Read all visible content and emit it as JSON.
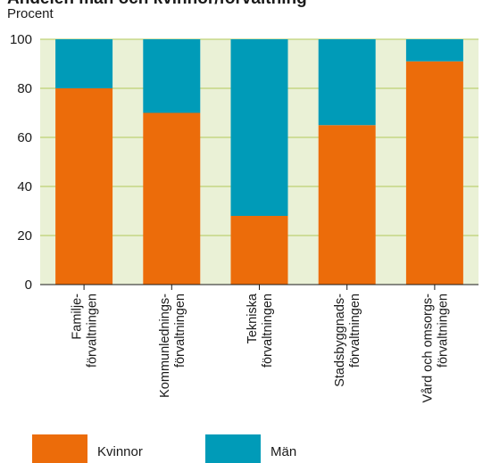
{
  "chart_data": {
    "type": "bar",
    "stacked": true,
    "title": "Andelen män och kvinnor/förvaltning",
    "ylabel": "Procent",
    "xlabel": "",
    "ylim": [
      0,
      100
    ],
    "yticks": [
      0,
      20,
      40,
      60,
      80,
      100
    ],
    "categories": [
      [
        "Familje-",
        "förvaltningen"
      ],
      [
        "Kommunlednings-",
        "förvaltningen"
      ],
      [
        "Tekniska",
        "förvaltningen"
      ],
      [
        "Stadsbyggnads-",
        "förvaltningen"
      ],
      [
        "Vård och omsorgs-",
        "förvaltningen"
      ]
    ],
    "series": [
      {
        "name": "Kvinnor",
        "color": "#ec6c0a",
        "values": [
          80,
          70,
          28,
          65,
          91
        ]
      },
      {
        "name": "Män",
        "color": "#009bb8",
        "values": [
          20,
          30,
          72,
          35,
          9
        ]
      }
    ],
    "background_band_color": "#eaf1d6",
    "gridline_color": "#b3c95a",
    "legend_position": "bottom",
    "grid": true
  }
}
